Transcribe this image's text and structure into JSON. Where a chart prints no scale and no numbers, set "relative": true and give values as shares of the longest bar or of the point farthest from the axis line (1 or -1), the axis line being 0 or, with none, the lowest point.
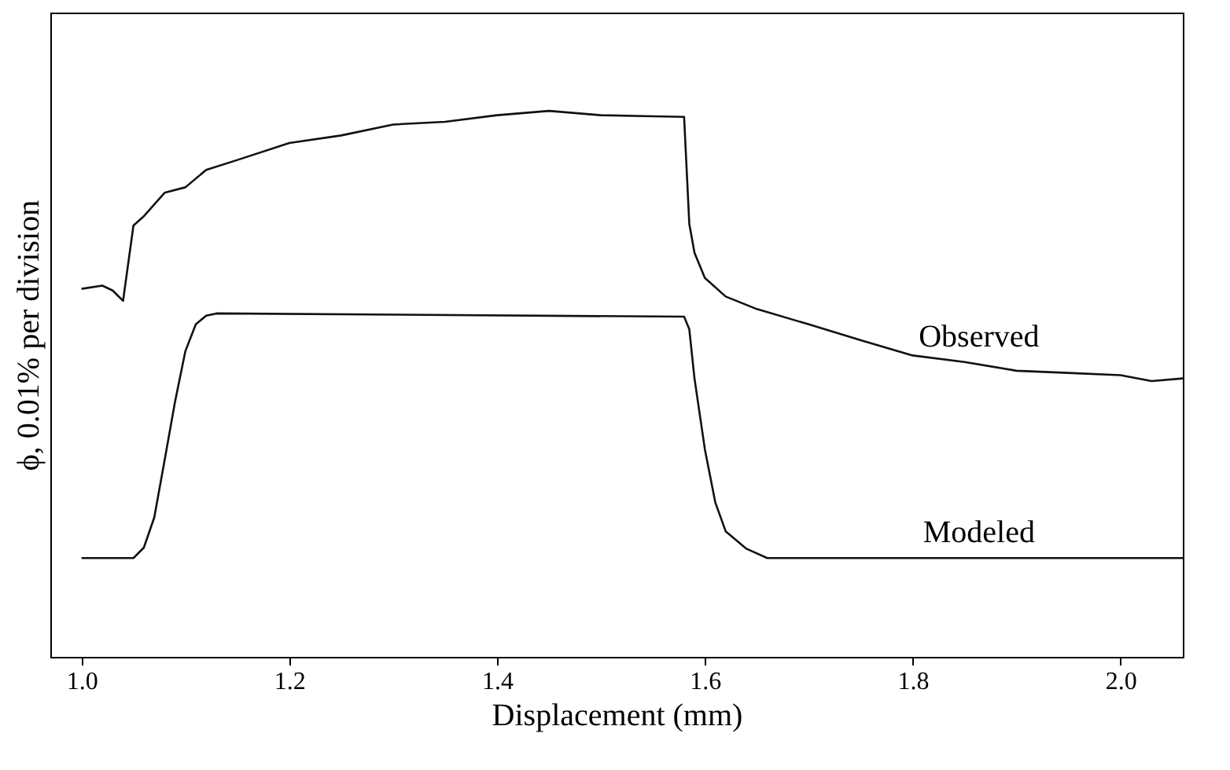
{
  "chart_data": {
    "type": "line",
    "relative": true,
    "xlabel": "Displacement (mm)",
    "ylabel": "ϕ, 0.01% per division",
    "xlim": [
      0.97,
      2.06
    ],
    "xticks": [
      {
        "value": 1,
        "label": "1.0"
      },
      {
        "value": 1.2,
        "label": "1.2"
      },
      {
        "value": 1.4,
        "label": "1.4"
      },
      {
        "value": 1.6,
        "label": "1.6"
      },
      {
        "value": 1.8,
        "label": "1.8"
      },
      {
        "value": 2,
        "label": "2.0"
      }
    ],
    "legend": false,
    "grid": false,
    "marker": "none",
    "line_style": "solid",
    "series": [
      {
        "name": "Observed",
        "color": "#111111",
        "x": [
          1.0,
          1.02,
          1.03,
          1.04,
          1.05,
          1.06,
          1.08,
          1.1,
          1.12,
          1.15,
          1.2,
          1.25,
          1.3,
          1.35,
          1.4,
          1.45,
          1.5,
          1.55,
          1.58,
          1.585,
          1.59,
          1.6,
          1.62,
          1.65,
          1.7,
          1.75,
          1.8,
          1.85,
          1.9,
          1.95,
          2.0,
          2.03,
          2.06
        ],
        "values": [
          0.674,
          0.68,
          0.671,
          0.652,
          0.79,
          0.807,
          0.85,
          0.86,
          0.892,
          0.91,
          0.941,
          0.955,
          0.975,
          0.98,
          0.992,
          1.0,
          0.992,
          0.99,
          0.989,
          0.793,
          0.74,
          0.694,
          0.66,
          0.637,
          0.609,
          0.58,
          0.552,
          0.54,
          0.524,
          0.52,
          0.516,
          0.505,
          0.51
        ]
      },
      {
        "name": "Modeled",
        "color": "#111111",
        "x": [
          1.0,
          1.05,
          1.06,
          1.07,
          1.08,
          1.09,
          1.1,
          1.11,
          1.12,
          1.13,
          1.58,
          1.585,
          1.59,
          1.6,
          1.61,
          1.62,
          1.64,
          1.66,
          2.06
        ],
        "values": [
          0.181,
          0.181,
          0.2,
          0.255,
          0.36,
          0.467,
          0.56,
          0.609,
          0.625,
          0.629,
          0.623,
          0.6,
          0.51,
          0.38,
          0.283,
          0.23,
          0.198,
          0.181,
          0.181
        ]
      }
    ]
  }
}
